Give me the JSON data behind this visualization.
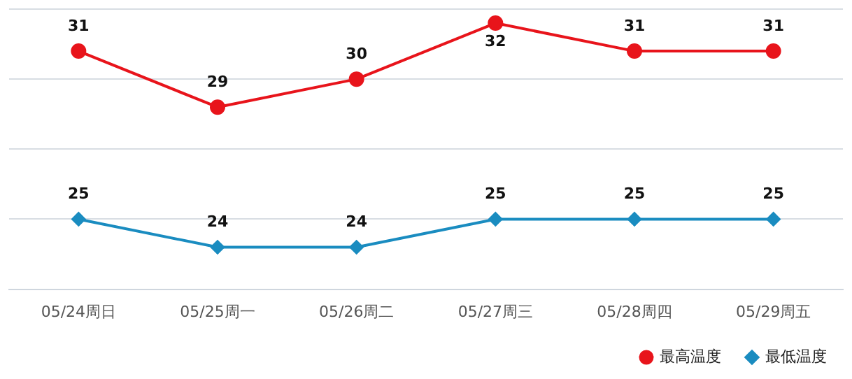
{
  "chart_data": {
    "type": "line",
    "categories": [
      "05/24周日",
      "05/25周一",
      "05/26周二",
      "05/27周三",
      "05/28周四",
      "05/29周五"
    ],
    "series": [
      {
        "name": "最高温度",
        "color": "#e8141b",
        "marker": "circle",
        "values": [
          31,
          29,
          30,
          32,
          31,
          31
        ]
      },
      {
        "name": "最低温度",
        "color": "#1a8cc0",
        "marker": "diamond",
        "values": [
          25,
          24,
          24,
          25,
          25,
          25
        ]
      }
    ],
    "ylim": [
      22.5,
      32.5
    ],
    "yticks": [
      {
        "value": 22.5,
        "label": null
      },
      {
        "value": 25,
        "label": null
      },
      {
        "value": 27.5,
        "label": null
      },
      {
        "value": 30,
        "label": null
      },
      {
        "value": 32.5,
        "label": null
      }
    ],
    "tick_labels": "x",
    "grid": "y",
    "legend": "bottom right",
    "data_labels": true,
    "line_style": "solid"
  }
}
